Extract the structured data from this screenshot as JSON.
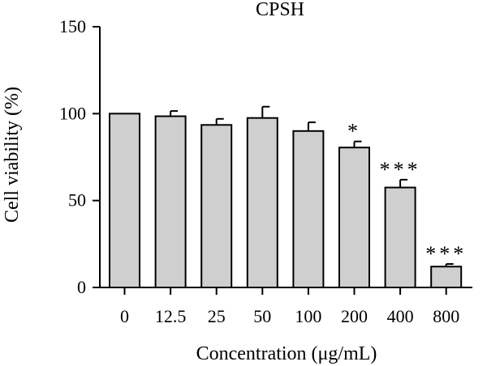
{
  "chart_data": {
    "type": "bar",
    "title": "CPSH",
    "xlabel": "Concentration (μg/mL)",
    "ylabel": "Cell viability (%)",
    "ylim": [
      0,
      150
    ],
    "yticks": [
      "0",
      "50",
      "100",
      "150"
    ],
    "categories": [
      "0",
      "12.5",
      "25",
      "50",
      "100",
      "200",
      "400",
      "800"
    ],
    "values": [
      100,
      98.5,
      93.5,
      97.5,
      90,
      80.5,
      57.5,
      12
    ],
    "errors": [
      0,
      3,
      3.5,
      6.5,
      5,
      3.5,
      4.5,
      1.5
    ],
    "significance": [
      "",
      "",
      "",
      "",
      "",
      "*",
      "***",
      "***"
    ],
    "grid": false,
    "legend": "none",
    "colors": {
      "bar": "#cfcfcf",
      "stroke": "#000000"
    }
  }
}
